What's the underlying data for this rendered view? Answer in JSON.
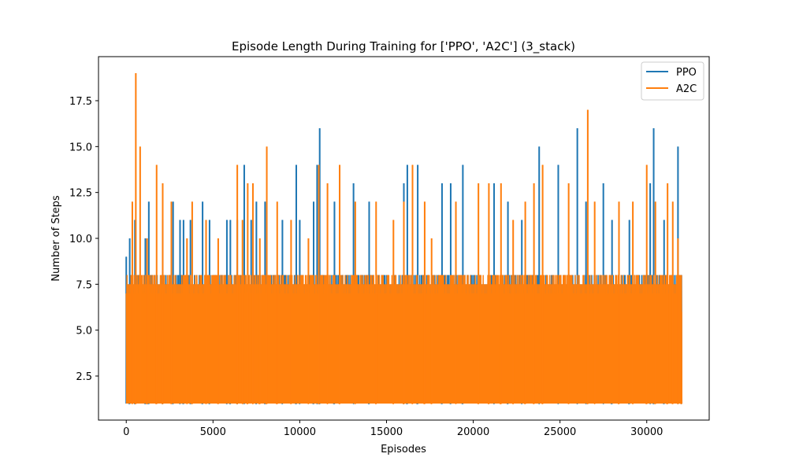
{
  "chart_data": {
    "type": "line",
    "title": "Episode Length During Training for ['PPO', 'A2C'] (3_stack)",
    "xlabel": "Episodes",
    "ylabel": "Number of Steps",
    "xlim": [
      -1600,
      33600
    ],
    "ylim": [
      0.1,
      19.9
    ],
    "xticks": [
      0,
      5000,
      10000,
      15000,
      20000,
      25000,
      30000
    ],
    "xtick_labels": [
      "0",
      "5000",
      "10000",
      "15000",
      "20000",
      "25000",
      "30000"
    ],
    "yticks": [
      2.5,
      5.0,
      7.5,
      10.0,
      12.5,
      15.0,
      17.5
    ],
    "ytick_labels": [
      "2.5",
      "5.0",
      "7.5",
      "10.0",
      "12.5",
      "15.0",
      "17.5"
    ],
    "grid": false,
    "legend_position": "top-right",
    "series": [
      {
        "name": "PPO",
        "color": "#1f77b4",
        "x_range": [
          0,
          32000
        ],
        "baseline_min": 1,
        "typical_max": 8,
        "peaks": [
          [
            0,
            9
          ],
          [
            200,
            10
          ],
          [
            500,
            11
          ],
          [
            1100,
            10
          ],
          [
            1300,
            12
          ],
          [
            2100,
            11
          ],
          [
            2700,
            12
          ],
          [
            3100,
            11
          ],
          [
            3300,
            11
          ],
          [
            3700,
            11
          ],
          [
            4400,
            12
          ],
          [
            4800,
            11
          ],
          [
            5800,
            11
          ],
          [
            6000,
            11
          ],
          [
            6400,
            11
          ],
          [
            6800,
            14
          ],
          [
            7200,
            11
          ],
          [
            7500,
            12
          ],
          [
            8000,
            12
          ],
          [
            9000,
            11
          ],
          [
            9800,
            14
          ],
          [
            10000,
            11
          ],
          [
            10800,
            12
          ],
          [
            11000,
            14
          ],
          [
            11150,
            16
          ],
          [
            12000,
            12
          ],
          [
            13100,
            13
          ],
          [
            14000,
            12
          ],
          [
            16000,
            13
          ],
          [
            16200,
            14
          ],
          [
            16800,
            14
          ],
          [
            18200,
            13
          ],
          [
            18700,
            13
          ],
          [
            19400,
            14
          ],
          [
            21200,
            13
          ],
          [
            22000,
            12
          ],
          [
            22800,
            11
          ],
          [
            23800,
            15
          ],
          [
            24900,
            14
          ],
          [
            26000,
            16
          ],
          [
            26500,
            12
          ],
          [
            27500,
            13
          ],
          [
            28000,
            11
          ],
          [
            29000,
            11
          ],
          [
            30200,
            13
          ],
          [
            30400,
            16
          ],
          [
            31000,
            11
          ],
          [
            31800,
            15
          ],
          [
            32000,
            8
          ]
        ]
      },
      {
        "name": "A2C",
        "color": "#ff7f0e",
        "x_range": [
          0,
          32000
        ],
        "baseline_min": 1,
        "typical_max": 8,
        "peaks": [
          [
            350,
            12
          ],
          [
            550,
            19
          ],
          [
            800,
            15
          ],
          [
            1200,
            10
          ],
          [
            1750,
            14
          ],
          [
            2100,
            13
          ],
          [
            2600,
            12
          ],
          [
            3500,
            10
          ],
          [
            3800,
            12
          ],
          [
            4600,
            11
          ],
          [
            5300,
            10
          ],
          [
            6400,
            14
          ],
          [
            6700,
            11
          ],
          [
            7000,
            13
          ],
          [
            7300,
            13
          ],
          [
            7700,
            10
          ],
          [
            8100,
            15
          ],
          [
            8700,
            12
          ],
          [
            9500,
            11
          ],
          [
            10500,
            10
          ],
          [
            11100,
            14
          ],
          [
            11600,
            13
          ],
          [
            12300,
            14
          ],
          [
            13200,
            12
          ],
          [
            14400,
            12
          ],
          [
            15400,
            11
          ],
          [
            16000,
            12
          ],
          [
            16500,
            14
          ],
          [
            17200,
            12
          ],
          [
            17600,
            10
          ],
          [
            19000,
            12
          ],
          [
            20300,
            13
          ],
          [
            20900,
            13
          ],
          [
            21600,
            13
          ],
          [
            22300,
            11
          ],
          [
            23000,
            12
          ],
          [
            23500,
            13
          ],
          [
            24000,
            14
          ],
          [
            25500,
            13
          ],
          [
            26600,
            17
          ],
          [
            27000,
            12
          ],
          [
            28400,
            12
          ],
          [
            29200,
            12
          ],
          [
            30000,
            14
          ],
          [
            30500,
            12
          ],
          [
            31200,
            13
          ],
          [
            31500,
            12
          ],
          [
            31800,
            10
          ],
          [
            32000,
            6
          ]
        ]
      }
    ]
  }
}
